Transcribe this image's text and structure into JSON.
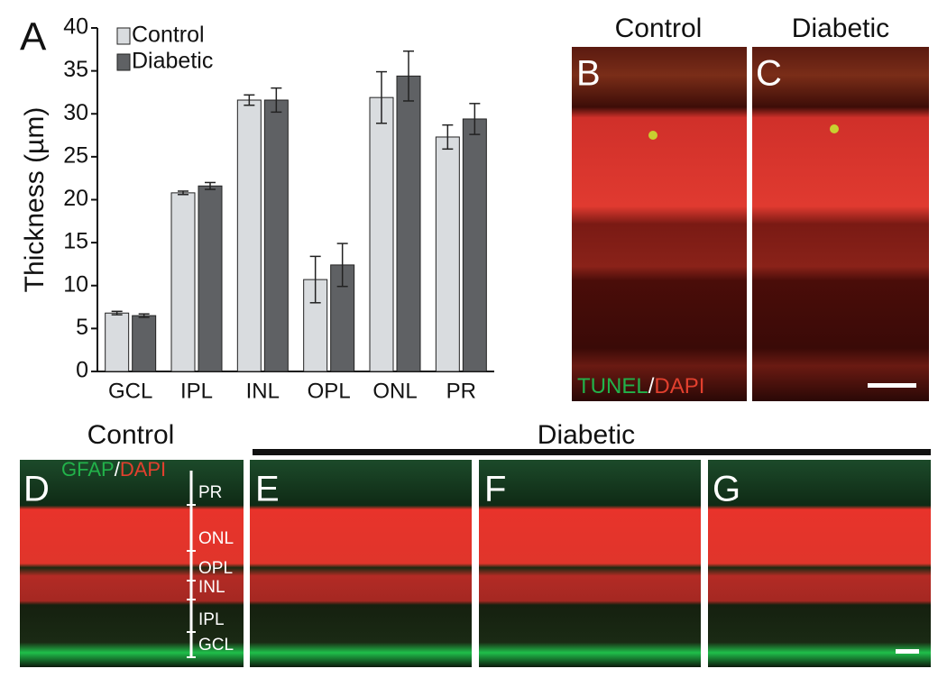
{
  "chart_data": {
    "type": "bar",
    "panel_label": "A",
    "y_label": "Thickness (µm)",
    "categories": [
      "GCL",
      "IPL",
      "INL",
      "OPL",
      "ONL",
      "PR"
    ],
    "series": [
      {
        "name": "Control",
        "color": "#d9dcdf",
        "values": [
          6.8,
          20.8,
          31.6,
          10.7,
          31.9,
          27.3
        ],
        "errors": [
          0.2,
          0.2,
          0.6,
          2.7,
          3.0,
          1.4
        ]
      },
      {
        "name": "Diabetic",
        "color": "#5f6164",
        "values": [
          6.5,
          21.6,
          31.6,
          12.4,
          34.4,
          29.4
        ],
        "errors": [
          0.2,
          0.4,
          1.4,
          2.5,
          2.9,
          1.8
        ]
      }
    ],
    "ylim": [
      0,
      40
    ],
    "yticks": [
      0,
      5,
      10,
      15,
      20,
      25,
      30,
      35,
      40
    ]
  },
  "panels": {
    "top_headers": [
      "Control",
      "Diabetic"
    ],
    "top_labels": [
      "B",
      "C"
    ],
    "top_stain": [
      "TUNEL",
      "/",
      "DAPI"
    ],
    "bottom_headers": [
      "Control",
      "Diabetic"
    ],
    "bottom_labels": [
      "D",
      "E",
      "F",
      "G"
    ],
    "bottom_stain": [
      "GFAP",
      "/",
      "DAPI"
    ],
    "layers": [
      "PR",
      "ONL",
      "OPL",
      "INL",
      "IPL",
      "GCL"
    ]
  }
}
